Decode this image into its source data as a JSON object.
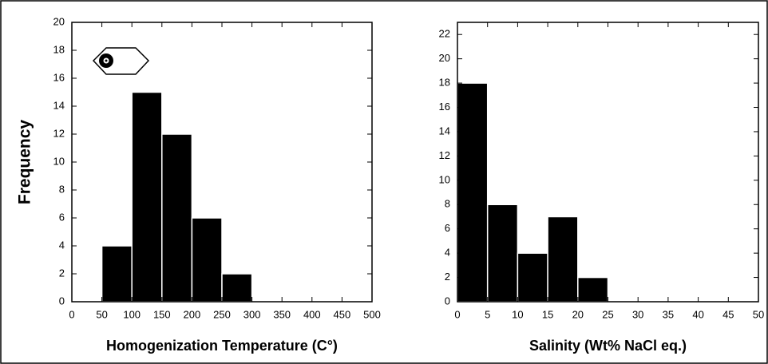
{
  "chart_data": [
    {
      "type": "histogram",
      "xlabel": "Homogenization Temperature (C°)",
      "ylabel": "Frequency",
      "bins": [
        50,
        100,
        150,
        200,
        250,
        300
      ],
      "counts": [
        4,
        15,
        12,
        6,
        2
      ],
      "color": "#000000",
      "xlim": [
        0,
        500
      ],
      "xticks": [
        0,
        50,
        100,
        150,
        200,
        250,
        300,
        350,
        400,
        450,
        500
      ],
      "ylim": [
        0,
        20
      ],
      "yticks": [
        0,
        2,
        4,
        6,
        8,
        10,
        12,
        14,
        16,
        18,
        20
      ]
    },
    {
      "type": "histogram",
      "xlabel": "Salinity (Wt% NaCl eq.)",
      "bins": [
        0,
        5,
        10,
        15,
        20,
        25
      ],
      "counts": [
        18,
        8,
        4,
        7,
        2
      ],
      "color": "#000000",
      "xlim": [
        0,
        50
      ],
      "xticks": [
        0,
        5,
        10,
        15,
        20,
        25,
        30,
        35,
        40,
        45,
        50
      ],
      "ylim": [
        0,
        23
      ],
      "yticks": [
        0,
        2,
        4,
        6,
        8,
        10,
        12,
        14,
        16,
        18,
        20,
        22
      ]
    }
  ]
}
